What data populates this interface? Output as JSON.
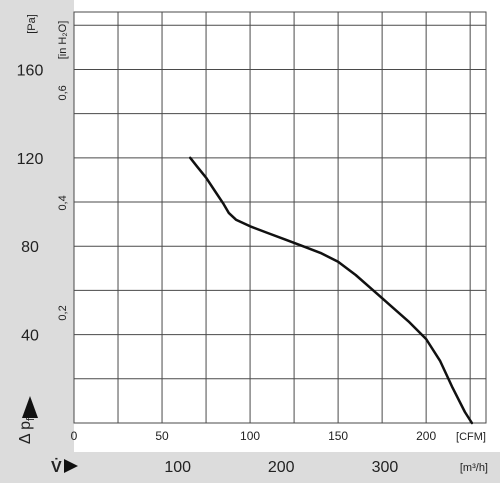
{
  "colors": {
    "panel_bg": "#dcdcdc",
    "plot_bg": "#ffffff",
    "grid": "#4a4a4a",
    "curve": "#111111"
  },
  "chart_data": {
    "type": "line",
    "left_axis": {
      "unit_label": "[Pa]",
      "range": [
        0,
        186
      ],
      "ticks": [
        40,
        80,
        120,
        160
      ],
      "symbol_label": "Δ p",
      "symbol_subscript": "fa"
    },
    "left_axis_2": {
      "unit_label": "[in H₂O]",
      "ticks": [
        {
          "value_pa": 49.8,
          "label": "0,2"
        },
        {
          "value_pa": 99.6,
          "label": "0,4"
        },
        {
          "value_pa": 149.4,
          "label": "0,6"
        }
      ]
    },
    "x_axis": {
      "unit_label": "[CFM]",
      "range": [
        0,
        234
      ],
      "ticks": [
        0,
        50,
        100,
        150,
        200
      ]
    },
    "x_axis_2": {
      "unit_label": "[m³/h]",
      "symbol_label": "V̇",
      "ticks": [
        {
          "value_cfm": 58.9,
          "label": "100"
        },
        {
          "value_cfm": 117.7,
          "label": "200"
        },
        {
          "value_cfm": 176.6,
          "label": "300"
        }
      ]
    },
    "grid": true,
    "series": [
      {
        "points": [
          [
            66,
            120
          ],
          [
            70,
            116
          ],
          [
            75,
            111
          ],
          [
            80,
            105
          ],
          [
            85,
            99
          ],
          [
            88,
            95
          ],
          [
            92,
            92
          ],
          [
            100,
            89
          ],
          [
            110,
            86
          ],
          [
            120,
            83
          ],
          [
            130,
            80
          ],
          [
            140,
            77
          ],
          [
            150,
            73
          ],
          [
            160,
            67
          ],
          [
            170,
            60
          ],
          [
            180,
            53
          ],
          [
            190,
            46
          ],
          [
            200,
            38
          ],
          [
            208,
            28
          ],
          [
            215,
            16
          ],
          [
            222,
            5
          ],
          [
            226,
            0
          ]
        ]
      }
    ]
  }
}
